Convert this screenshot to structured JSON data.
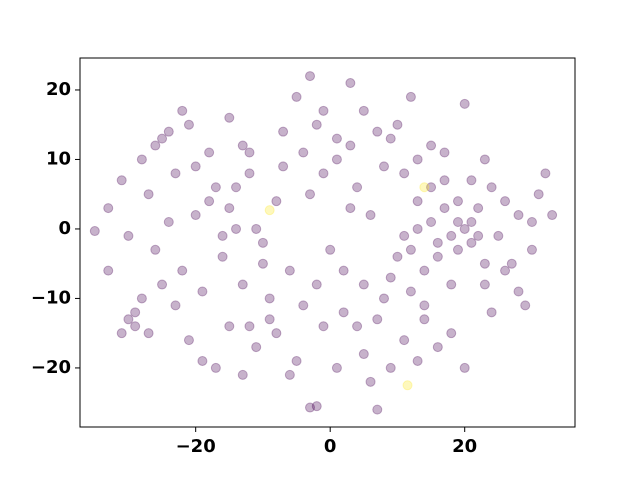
{
  "chart_data": {
    "type": "scatter",
    "xlim": [
      -37.2,
      36.4
    ],
    "ylim": [
      -28.5,
      24.6
    ],
    "xticks": [
      {
        "value": -20,
        "label": "−20"
      },
      0,
      20
    ],
    "yticks": [
      {
        "value": -20,
        "label": "−20"
      },
      {
        "value": -10,
        "label": "−10"
      },
      0,
      10,
      20
    ],
    "series": [
      {
        "color": "#440154",
        "x": [
          -33,
          -31,
          -30,
          -28,
          -27,
          -26,
          -25,
          -24,
          -23,
          -22,
          -21,
          -20,
          -19,
          -18,
          -17,
          -16,
          -15,
          -14,
          -13,
          -12,
          -29,
          -27,
          -25,
          -23,
          -21,
          -19,
          -17,
          -15,
          -13,
          -11,
          -30,
          -31,
          -29,
          -12,
          -10,
          -9,
          -8,
          -7,
          -6,
          -5,
          -4,
          -3,
          -2,
          -1,
          0,
          1,
          2,
          3,
          4,
          5,
          6,
          7,
          8,
          9,
          10,
          11,
          12,
          13,
          14,
          15,
          16,
          17,
          18,
          19,
          20,
          21,
          22,
          23,
          24,
          25,
          26,
          27,
          28,
          29,
          30,
          31,
          32,
          33,
          18,
          20,
          15,
          16,
          17,
          19,
          21,
          22,
          23,
          12,
          13,
          14,
          -2,
          -1,
          1,
          3,
          5,
          7,
          9,
          11,
          13,
          -3,
          -20,
          -18,
          -16,
          -14,
          -12,
          -10,
          -8,
          -6,
          -4,
          -2,
          2,
          4,
          6,
          8,
          10,
          12,
          14,
          16,
          18,
          20,
          24,
          26,
          28,
          30,
          -35,
          -33,
          -22,
          -24,
          -26,
          -28,
          -15,
          -13,
          -11,
          -9,
          -7,
          -5,
          -3,
          -1,
          1,
          3,
          5,
          7,
          9,
          11,
          13,
          15,
          17,
          19,
          21,
          23
        ],
        "y": [
          3,
          7,
          -1,
          10,
          5,
          -3,
          13,
          1,
          8,
          -6,
          15,
          2,
          -9,
          11,
          6,
          -4,
          16,
          0,
          12,
          -14,
          -12,
          -15,
          -8,
          -11,
          -16,
          -19,
          -20,
          -14,
          -21,
          -17,
          -13,
          -15,
          -14,
          8,
          -2,
          -10,
          4,
          14,
          -6,
          19,
          11,
          22,
          -25.5,
          8,
          -3,
          13,
          -12,
          21,
          6,
          -18,
          2,
          -26,
          9,
          -7,
          15,
          -1,
          19,
          4,
          -11,
          12,
          -4,
          7,
          -15,
          1,
          18,
          -2,
          3,
          -8,
          6,
          -1,
          4,
          -5,
          2,
          -11,
          1,
          5,
          8,
          2,
          -1,
          0,
          1,
          -2,
          3,
          -3,
          1,
          -1,
          -5,
          -3,
          0,
          -6,
          15,
          17,
          10,
          3,
          -8,
          -13,
          -20,
          -16,
          -19,
          -25.7,
          9,
          4,
          -1,
          6,
          11,
          -5,
          -15,
          -21,
          -11,
          -8,
          -6,
          -14,
          -22,
          -10,
          -4,
          -9,
          -13,
          -17,
          -8,
          -20,
          -12,
          -6,
          -9,
          -3,
          -0.3,
          -6,
          17,
          14,
          12,
          -10,
          3,
          -8,
          0,
          -13,
          9,
          -19,
          5,
          -14,
          -20,
          12,
          17,
          14,
          13,
          8,
          10,
          6,
          11,
          4,
          7,
          10
        ]
      },
      {
        "color": "#fde725",
        "x": [
          -9,
          14,
          11.5
        ],
        "y": [
          2.7,
          6,
          -22.5
        ]
      }
    ]
  }
}
